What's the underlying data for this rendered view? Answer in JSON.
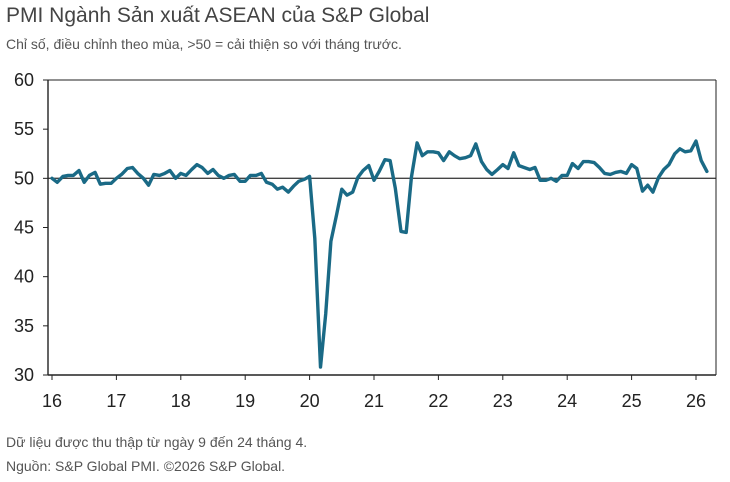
{
  "header": {
    "title": "PMI Ngành Sản xuất ASEAN của S&P Global",
    "subtitle": "Chỉ số, điều chỉnh theo mùa, >50 = cải thiện so với tháng trước."
  },
  "footer": {
    "note": "Dữ liệu được thu thập từ ngày 9 đến 24 tháng 4.",
    "source": "Nguồn: S&P Global PMI. ©2026 S&P Global."
  },
  "colors": {
    "line": "#1a6a86",
    "axis": "#222222",
    "reference": "#444444"
  },
  "chart_data": {
    "type": "line",
    "title": "PMI Ngành Sản xuất ASEAN của S&P Global",
    "xlabel": "",
    "ylabel": "",
    "ylim": [
      30,
      60
    ],
    "yticks": [
      30,
      35,
      40,
      45,
      50,
      55,
      60
    ],
    "xticks": [
      "16",
      "17",
      "18",
      "19",
      "20",
      "21",
      "22",
      "23",
      "24",
      "25",
      "26"
    ],
    "xlim_years": [
      2016,
      2026.33
    ],
    "reference_line": 50,
    "grid": false,
    "series": [
      {
        "values": [
          [
            2016.0,
            50.0
          ],
          [
            2016.08,
            49.6
          ],
          [
            2016.17,
            50.2
          ],
          [
            2016.25,
            50.3
          ],
          [
            2016.33,
            50.3
          ],
          [
            2016.42,
            50.8
          ],
          [
            2016.5,
            49.6
          ],
          [
            2016.58,
            50.3
          ],
          [
            2016.67,
            50.6
          ],
          [
            2016.75,
            49.4
          ],
          [
            2016.83,
            49.5
          ],
          [
            2016.92,
            49.5
          ],
          [
            2017.0,
            50.0
          ],
          [
            2017.08,
            50.4
          ],
          [
            2017.17,
            51.0
          ],
          [
            2017.25,
            51.1
          ],
          [
            2017.33,
            50.5
          ],
          [
            2017.42,
            50.0
          ],
          [
            2017.5,
            49.3
          ],
          [
            2017.58,
            50.4
          ],
          [
            2017.67,
            50.3
          ],
          [
            2017.75,
            50.5
          ],
          [
            2017.83,
            50.8
          ],
          [
            2017.92,
            50.0
          ],
          [
            2018.0,
            50.5
          ],
          [
            2018.08,
            50.3
          ],
          [
            2018.17,
            50.9
          ],
          [
            2018.25,
            51.4
          ],
          [
            2018.33,
            51.1
          ],
          [
            2018.42,
            50.5
          ],
          [
            2018.5,
            50.9
          ],
          [
            2018.58,
            50.3
          ],
          [
            2018.67,
            50.0
          ],
          [
            2018.75,
            50.3
          ],
          [
            2018.83,
            50.4
          ],
          [
            2018.92,
            49.7
          ],
          [
            2019.0,
            49.7
          ],
          [
            2019.08,
            50.3
          ],
          [
            2019.17,
            50.3
          ],
          [
            2019.25,
            50.5
          ],
          [
            2019.33,
            49.6
          ],
          [
            2019.42,
            49.4
          ],
          [
            2019.5,
            48.9
          ],
          [
            2019.58,
            49.1
          ],
          [
            2019.67,
            48.6
          ],
          [
            2019.75,
            49.2
          ],
          [
            2019.83,
            49.7
          ],
          [
            2019.92,
            49.9
          ],
          [
            2020.0,
            50.2
          ],
          [
            2020.08,
            43.9
          ],
          [
            2020.17,
            30.8
          ],
          [
            2020.25,
            36.2
          ],
          [
            2020.33,
            43.6
          ],
          [
            2020.42,
            46.3
          ],
          [
            2020.5,
            48.9
          ],
          [
            2020.58,
            48.3
          ],
          [
            2020.67,
            48.6
          ],
          [
            2020.75,
            50.1
          ],
          [
            2020.83,
            50.8
          ],
          [
            2020.92,
            51.3
          ],
          [
            2021.0,
            49.8
          ],
          [
            2021.08,
            50.7
          ],
          [
            2021.17,
            51.9
          ],
          [
            2021.25,
            51.8
          ],
          [
            2021.33,
            49.0
          ],
          [
            2021.42,
            44.6
          ],
          [
            2021.5,
            44.5
          ],
          [
            2021.58,
            50.1
          ],
          [
            2021.67,
            53.6
          ],
          [
            2021.75,
            52.3
          ],
          [
            2021.83,
            52.7
          ],
          [
            2021.92,
            52.7
          ],
          [
            2022.0,
            52.6
          ],
          [
            2022.08,
            51.8
          ],
          [
            2022.17,
            52.7
          ],
          [
            2022.25,
            52.3
          ],
          [
            2022.33,
            52.0
          ],
          [
            2022.42,
            52.1
          ],
          [
            2022.5,
            52.3
          ],
          [
            2022.58,
            53.5
          ],
          [
            2022.67,
            51.7
          ],
          [
            2022.75,
            50.9
          ],
          [
            2022.83,
            50.4
          ],
          [
            2022.92,
            50.9
          ],
          [
            2023.0,
            51.4
          ],
          [
            2023.08,
            51.0
          ],
          [
            2023.17,
            52.6
          ],
          [
            2023.25,
            51.3
          ],
          [
            2023.33,
            51.1
          ],
          [
            2023.42,
            50.9
          ],
          [
            2023.5,
            51.1
          ],
          [
            2023.58,
            49.8
          ],
          [
            2023.67,
            49.8
          ],
          [
            2023.75,
            50.0
          ],
          [
            2023.83,
            49.7
          ],
          [
            2023.92,
            50.3
          ],
          [
            2024.0,
            50.3
          ],
          [
            2024.08,
            51.5
          ],
          [
            2024.17,
            51.0
          ],
          [
            2024.25,
            51.7
          ],
          [
            2024.33,
            51.7
          ],
          [
            2024.42,
            51.6
          ],
          [
            2024.5,
            51.1
          ],
          [
            2024.58,
            50.5
          ],
          [
            2024.67,
            50.4
          ],
          [
            2024.75,
            50.6
          ],
          [
            2024.83,
            50.7
          ],
          [
            2024.92,
            50.5
          ],
          [
            2025.0,
            51.4
          ],
          [
            2025.08,
            51.0
          ],
          [
            2025.17,
            48.7
          ],
          [
            2025.25,
            49.3
          ],
          [
            2025.33,
            48.6
          ],
          [
            2025.42,
            50.1
          ],
          [
            2025.5,
            50.9
          ],
          [
            2025.58,
            51.4
          ],
          [
            2025.67,
            52.5
          ],
          [
            2025.75,
            53.0
          ],
          [
            2025.83,
            52.7
          ],
          [
            2025.92,
            52.8
          ],
          [
            2026.0,
            53.8
          ],
          [
            2026.08,
            51.8
          ],
          [
            2026.17,
            50.7
          ]
        ]
      }
    ]
  }
}
